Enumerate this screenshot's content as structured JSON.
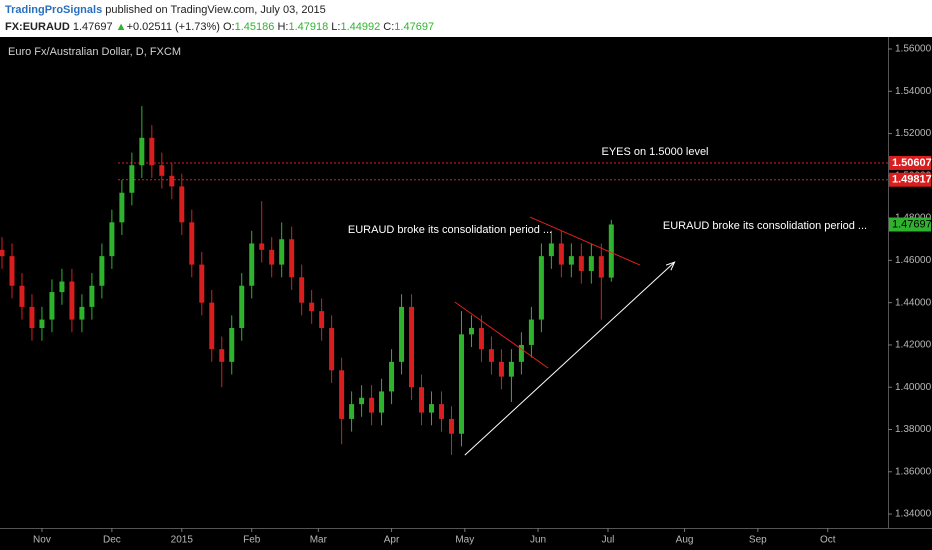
{
  "header": {
    "publisher": "TradingProSignals",
    "published": " published on TradingView.com, July 03, 2015",
    "symbol": "FX:EURAUD",
    "last": "1.47697",
    "arrow": "▲",
    "change": "+0.02511 (+1.73%)",
    "ohlc": [
      {
        "key": "O:",
        "value": "1.45186"
      },
      {
        "key": "H:",
        "value": "1.47918"
      },
      {
        "key": "L:",
        "value": "1.44992"
      },
      {
        "key": "C:",
        "value": "1.47697"
      }
    ]
  },
  "chart_data": {
    "type": "candlestick",
    "title": "Euro Fx/Australian Dollar, D, FXCM",
    "x": [
      0,
      3,
      6,
      9,
      12,
      15,
      18,
      21,
      24,
      27,
      30,
      33,
      36,
      39,
      42,
      45,
      48,
      51,
      54,
      57,
      60,
      63,
      66,
      69,
      72,
      75,
      78,
      81,
      84,
      87,
      90,
      93,
      96,
      99,
      102,
      105,
      108,
      111,
      114,
      117,
      120,
      123,
      126,
      129,
      132,
      135,
      138,
      141,
      144,
      147,
      150,
      153,
      156,
      159,
      162,
      165,
      168,
      171,
      174,
      177,
      180,
      183
    ],
    "open": [
      1.465,
      1.462,
      1.448,
      1.438,
      1.428,
      1.432,
      1.445,
      1.45,
      1.432,
      1.438,
      1.448,
      1.462,
      1.478,
      1.492,
      1.505,
      1.518,
      1.505,
      1.5,
      1.495,
      1.478,
      1.458,
      1.44,
      1.418,
      1.412,
      1.428,
      1.448,
      1.468,
      1.465,
      1.458,
      1.47,
      1.452,
      1.44,
      1.436,
      1.428,
      1.408,
      1.385,
      1.392,
      1.395,
      1.388,
      1.398,
      1.412,
      1.438,
      1.4,
      1.388,
      1.392,
      1.385,
      1.378,
      1.425,
      1.428,
      1.418,
      1.412,
      1.405,
      1.412,
      1.42,
      1.432,
      1.462,
      1.468,
      1.458,
      1.462,
      1.455,
      1.462,
      1.45186
    ],
    "high": [
      1.471,
      1.468,
      1.454,
      1.444,
      1.438,
      1.451,
      1.456,
      1.456,
      1.444,
      1.454,
      1.468,
      1.484,
      1.498,
      1.511,
      1.533,
      1.524,
      1.511,
      1.506,
      1.501,
      1.484,
      1.464,
      1.446,
      1.424,
      1.434,
      1.454,
      1.474,
      1.488,
      1.471,
      1.478,
      1.476,
      1.458,
      1.446,
      1.442,
      1.434,
      1.414,
      1.398,
      1.401,
      1.401,
      1.404,
      1.418,
      1.444,
      1.444,
      1.406,
      1.398,
      1.398,
      1.391,
      1.436,
      1.434,
      1.434,
      1.424,
      1.418,
      1.418,
      1.426,
      1.438,
      1.468,
      1.474,
      1.474,
      1.468,
      1.468,
      1.468,
      1.468,
      1.47918
    ],
    "low": [
      1.456,
      1.442,
      1.432,
      1.422,
      1.422,
      1.426,
      1.439,
      1.426,
      1.426,
      1.432,
      1.442,
      1.456,
      1.472,
      1.486,
      1.499,
      1.499,
      1.494,
      1.489,
      1.472,
      1.452,
      1.434,
      1.412,
      1.4,
      1.406,
      1.422,
      1.442,
      1.459,
      1.452,
      1.452,
      1.446,
      1.434,
      1.43,
      1.422,
      1.402,
      1.373,
      1.379,
      1.386,
      1.382,
      1.382,
      1.392,
      1.406,
      1.394,
      1.382,
      1.382,
      1.379,
      1.368,
      1.372,
      1.419,
      1.412,
      1.406,
      1.399,
      1.393,
      1.406,
      1.414,
      1.426,
      1.456,
      1.452,
      1.452,
      1.449,
      1.449,
      1.432,
      1.44992
    ],
    "close": [
      1.462,
      1.448,
      1.438,
      1.428,
      1.432,
      1.445,
      1.45,
      1.432,
      1.438,
      1.448,
      1.462,
      1.478,
      1.492,
      1.505,
      1.518,
      1.505,
      1.5,
      1.495,
      1.478,
      1.458,
      1.44,
      1.418,
      1.412,
      1.428,
      1.448,
      1.468,
      1.465,
      1.458,
      1.47,
      1.452,
      1.44,
      1.436,
      1.428,
      1.408,
      1.385,
      1.392,
      1.395,
      1.388,
      1.398,
      1.412,
      1.438,
      1.4,
      1.388,
      1.392,
      1.385,
      1.378,
      1.425,
      1.428,
      1.418,
      1.412,
      1.405,
      1.412,
      1.42,
      1.432,
      1.462,
      1.468,
      1.458,
      1.462,
      1.455,
      1.462,
      1.45186,
      1.47697
    ],
    "up_color": "#2fb32f",
    "down_color": "#d81e1e",
    "xlim": [
      -0.6,
      266.1
    ],
    "xticks": [
      {
        "value": 12,
        "label": "Nov"
      },
      {
        "value": 33,
        "label": "Dec"
      },
      {
        "value": 54,
        "label": "2015"
      },
      {
        "value": 75,
        "label": "Feb"
      },
      {
        "value": 95,
        "label": "Mar"
      },
      {
        "value": 117,
        "label": "Apr"
      },
      {
        "value": 139,
        "label": "May"
      },
      {
        "value": 161,
        "label": "Jun"
      },
      {
        "value": 182,
        "label": "Jul"
      },
      {
        "value": 205,
        "label": "Aug"
      },
      {
        "value": 227,
        "label": "Sep"
      },
      {
        "value": 248,
        "label": "Oct"
      }
    ],
    "ylim": [
      1.3334,
      1.5652
    ],
    "yticks": [
      {
        "value": 1.34,
        "label": "1.34000"
      },
      {
        "value": 1.36,
        "label": "1.36000"
      },
      {
        "value": 1.38,
        "label": "1.38000"
      },
      {
        "value": 1.4,
        "label": "1.40000"
      },
      {
        "value": 1.42,
        "label": "1.42000"
      },
      {
        "value": 1.44,
        "label": "1.44000"
      },
      {
        "value": 1.46,
        "label": "1.46000"
      },
      {
        "value": 1.48,
        "label": "1.48000"
      },
      {
        "value": 1.5,
        "label": "1.50000"
      },
      {
        "value": 1.52,
        "label": "1.52000"
      },
      {
        "value": 1.54,
        "label": "1.54000"
      },
      {
        "value": 1.56,
        "label": "1.56000"
      }
    ],
    "grid": false,
    "hlines": [
      1.50607,
      1.49817
    ],
    "hline_color": "#d81e1e",
    "last_price": 1.47697,
    "annotations": [
      "EYES on 1.5000 level",
      "EURAUD broke its consolidation period ...",
      "EURAUD broke its consolidation period ..."
    ],
    "trendlines": [
      {
        "x": [
          158.6,
          191.6
        ],
        "y": [
          1.4805,
          1.4578
        ],
        "color": "#e02020"
      },
      {
        "x": [
          136,
          164
        ],
        "y": [
          1.4403,
          1.4091
        ],
        "color": "#e02020"
      }
    ],
    "arrow": {
      "x": [
        139,
        202
      ],
      "y": [
        1.3679,
        1.4592
      ],
      "color": "#ffffff"
    }
  }
}
